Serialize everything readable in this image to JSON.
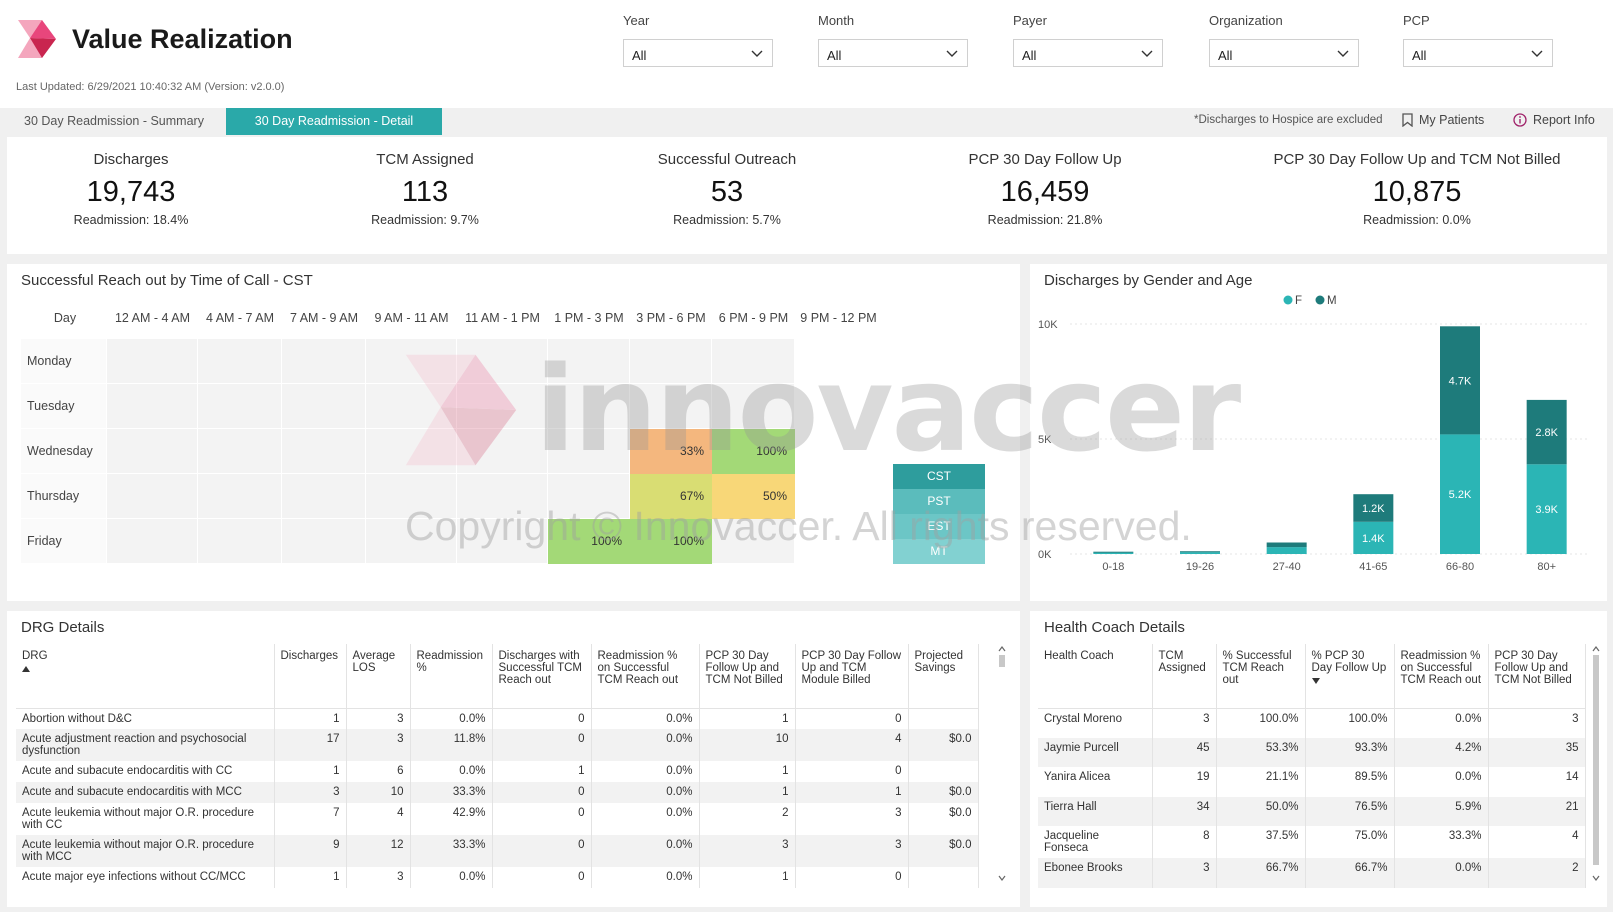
{
  "header": {
    "title": "Value Realization",
    "last_updated": "Last Updated: 6/29/2021 10:40:32 AM (Version: v2.0.0)",
    "filters": [
      {
        "label": "Year",
        "value": "All"
      },
      {
        "label": "Month",
        "value": "All"
      },
      {
        "label": "Payer",
        "value": "All"
      },
      {
        "label": "Organization",
        "value": "All"
      },
      {
        "label": "PCP",
        "value": "All"
      }
    ]
  },
  "tabs": {
    "summary": "30 Day Readmission - Summary",
    "detail": "30 Day Readmission - Detail",
    "note": "*Discharges to Hospice are excluded",
    "my_patients": "My Patients",
    "report_info": "Report Info"
  },
  "kpis": [
    {
      "title": "Discharges",
      "value": "19,743",
      "sub": "Readmission: 18.4%"
    },
    {
      "title": "TCM Assigned",
      "value": "113",
      "sub": "Readmission: 9.7%"
    },
    {
      "title": "Successful Outreach",
      "value": "53",
      "sub": "Readmission: 5.7%"
    },
    {
      "title": "PCP 30 Day Follow Up",
      "value": "16,459",
      "sub": "Readmission: 21.8%"
    },
    {
      "title": "PCP 30 Day Follow Up and TCM Not Billed",
      "value": "10,875",
      "sub": "Readmission: 0.0%"
    }
  ],
  "heatmap": {
    "title": "Successful Reach out by Time of Call - CST",
    "day_header": "Day",
    "columns": [
      "12 AM - 4 AM",
      "4 AM - 7 AM",
      "7 AM - 9 AM",
      "9 AM - 11 AM",
      "11 AM - 1 PM",
      "1 PM - 3 PM",
      "3 PM - 6 PM",
      "6 PM - 9 PM",
      "9 PM - 12 PM"
    ],
    "rows": [
      "Monday",
      "Tuesday",
      "Wednesday",
      "Thursday",
      "Friday"
    ],
    "cells": [
      {
        "row": 2,
        "col": 6,
        "label": "33%",
        "color": "#f4b77e"
      },
      {
        "row": 2,
        "col": 7,
        "label": "100%",
        "color": "#a3d977"
      },
      {
        "row": 3,
        "col": 6,
        "label": "67%",
        "color": "#d9dd73"
      },
      {
        "row": 3,
        "col": 7,
        "label": "50%",
        "color": "#f8d778"
      },
      {
        "row": 4,
        "col": 5,
        "label": "100%",
        "color": "#a3d977"
      },
      {
        "row": 4,
        "col": 6,
        "label": "100%",
        "color": "#a3d977"
      }
    ],
    "timezones": [
      "CST",
      "PST",
      "EST",
      "MT"
    ],
    "timezone_colors": [
      "#2e9d9d",
      "#5bbcbc",
      "#6cc6c6",
      "#82d1d1"
    ]
  },
  "watermark": {
    "word": "innovaccer",
    "copyright": "Copyright © Innovaccer. All rights reserved."
  },
  "gender_chart_title": "Discharges by Gender and Age",
  "chart_data": {
    "type": "bar",
    "stacked": true,
    "categories": [
      "0-18",
      "19-26",
      "27-40",
      "41-65",
      "66-80",
      "80+"
    ],
    "series": [
      {
        "name": "F",
        "color": "#2bb5b5",
        "values": [
          60,
          80,
          300,
          1400,
          5200,
          3900
        ],
        "labels": [
          "",
          "",
          "",
          "1.4K",
          "5.2K",
          "3.9K"
        ]
      },
      {
        "name": "M",
        "color": "#1e7b7b",
        "values": [
          40,
          40,
          200,
          1200,
          4700,
          2800
        ],
        "labels": [
          "",
          "",
          "",
          "1.2K",
          "4.7K",
          "2.8K"
        ]
      }
    ],
    "yticks": [
      "0K",
      "5K",
      "10K"
    ],
    "ylim": [
      0,
      10000
    ],
    "legend_position": "top"
  },
  "drg": {
    "title": "DRG Details",
    "columns": [
      "DRG",
      "Discharges",
      "Average LOS",
      "Readmission %",
      "Discharges with Successful TCM Reach out",
      "Readmission % on Successful TCM Reach out",
      "PCP 30 Day Follow Up and TCM Not Billed",
      "PCP 30 Day Follow Up and TCM Module Billed",
      "Projected Savings"
    ],
    "rows": [
      [
        "Abortion without D&C",
        "1",
        "3",
        "0.0%",
        "0",
        "0.0%",
        "1",
        "0",
        ""
      ],
      [
        "Acute adjustment reaction and psychosocial dysfunction",
        "17",
        "3",
        "11.8%",
        "0",
        "0.0%",
        "10",
        "4",
        "$0.0"
      ],
      [
        "Acute and subacute endocarditis with CC",
        "1",
        "6",
        "0.0%",
        "1",
        "0.0%",
        "1",
        "0",
        ""
      ],
      [
        "Acute and subacute endocarditis with MCC",
        "3",
        "10",
        "33.3%",
        "0",
        "0.0%",
        "1",
        "1",
        "$0.0"
      ],
      [
        "Acute leukemia without major O.R. procedure with CC",
        "7",
        "4",
        "42.9%",
        "0",
        "0.0%",
        "2",
        "3",
        "$0.0"
      ],
      [
        "Acute leukemia without major O.R. procedure with MCC",
        "9",
        "12",
        "33.3%",
        "0",
        "0.0%",
        "3",
        "3",
        "$0.0"
      ],
      [
        "Acute major eye infections without CC/MCC",
        "1",
        "3",
        "0.0%",
        "0",
        "0.0%",
        "1",
        "0",
        ""
      ]
    ]
  },
  "health_coach": {
    "title": "Health Coach Details",
    "columns": [
      "Health Coach",
      "TCM Assigned",
      "% Successful TCM Reach out",
      "% PCP 30 Day Follow Up",
      "Readmission % on Successful TCM Reach out",
      "PCP 30 Day Follow Up and TCM Not Billed"
    ],
    "rows": [
      [
        "Crystal Moreno",
        "3",
        "100.0%",
        "100.0%",
        "0.0%",
        "3"
      ],
      [
        "Jaymie Purcell",
        "45",
        "53.3%",
        "93.3%",
        "4.2%",
        "35"
      ],
      [
        "Yanira Alicea",
        "19",
        "21.1%",
        "89.5%",
        "0.0%",
        "14"
      ],
      [
        "Tierra Hall",
        "34",
        "50.0%",
        "76.5%",
        "5.9%",
        "21"
      ],
      [
        "Jacqueline Fonseca",
        "8",
        "37.5%",
        "75.0%",
        "33.3%",
        "4"
      ],
      [
        "Ebonee Brooks",
        "3",
        "66.7%",
        "66.7%",
        "0.0%",
        "2"
      ]
    ]
  }
}
